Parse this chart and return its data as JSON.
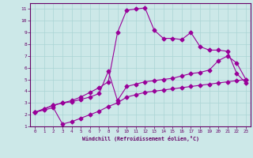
{
  "xlabel": "Windchill (Refroidissement éolien,°C)",
  "bg_color": "#cce8e8",
  "line_color": "#990099",
  "xlim": [
    -0.5,
    23.5
  ],
  "ylim": [
    1,
    11.5
  ],
  "xticks": [
    0,
    1,
    2,
    3,
    4,
    5,
    6,
    7,
    8,
    9,
    10,
    11,
    12,
    13,
    14,
    15,
    16,
    17,
    18,
    19,
    20,
    21,
    22,
    23
  ],
  "yticks": [
    1,
    2,
    3,
    4,
    5,
    6,
    7,
    8,
    9,
    10,
    11
  ],
  "grid_color": "#aad4d4",
  "curve1_x": [
    0,
    1,
    2,
    3,
    4,
    5,
    6,
    7,
    8,
    9,
    10,
    11,
    12,
    13,
    14,
    15,
    16,
    17,
    18,
    19,
    20,
    21,
    22,
    23
  ],
  "curve1_y": [
    2.2,
    2.4,
    2.6,
    1.2,
    1.4,
    1.7,
    2.0,
    2.3,
    2.7,
    3.0,
    3.5,
    3.7,
    3.9,
    4.0,
    4.1,
    4.2,
    4.3,
    4.4,
    4.5,
    4.6,
    4.7,
    4.8,
    4.9,
    5.0
  ],
  "curve2_x": [
    0,
    1,
    2,
    3,
    4,
    5,
    6,
    7,
    8,
    9,
    10,
    11,
    12,
    13,
    14,
    15,
    16,
    17,
    18,
    19,
    20,
    21,
    22,
    23
  ],
  "curve2_y": [
    2.2,
    2.5,
    2.8,
    3.0,
    3.1,
    3.3,
    3.5,
    3.8,
    5.7,
    3.2,
    4.4,
    4.6,
    4.8,
    4.9,
    5.0,
    5.1,
    5.3,
    5.5,
    5.6,
    5.8,
    6.6,
    7.0,
    6.4,
    5.0
  ],
  "curve3_x": [
    0,
    1,
    2,
    3,
    4,
    5,
    6,
    7,
    8,
    9,
    10,
    11,
    12,
    13,
    14,
    15,
    16,
    17,
    18,
    19,
    20,
    21,
    22,
    23
  ],
  "curve3_y": [
    2.2,
    2.5,
    2.8,
    3.0,
    3.2,
    3.5,
    3.9,
    4.3,
    4.8,
    9.0,
    10.9,
    11.0,
    11.1,
    9.2,
    8.5,
    8.5,
    8.4,
    9.0,
    7.8,
    7.5,
    7.5,
    7.4,
    5.5,
    4.7
  ]
}
